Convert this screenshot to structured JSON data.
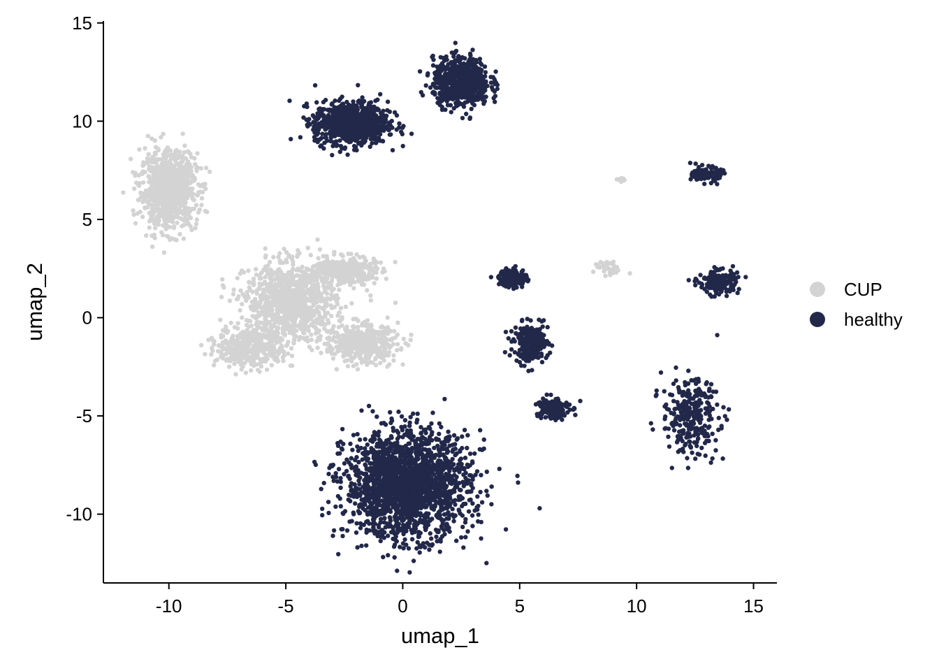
{
  "chart_data": {
    "type": "scatter",
    "xlabel": "umap_1",
    "ylabel": "umap_2",
    "xlim": [
      -12.8,
      16.0
    ],
    "ylim": [
      -13.5,
      15.1
    ],
    "xticks": [
      -10,
      -5,
      0,
      5,
      10,
      15
    ],
    "xtick_labels": [
      "-10",
      "-5",
      "0",
      "5",
      "10",
      "15"
    ],
    "yticks": [
      -10,
      -5,
      0,
      5,
      10,
      15
    ],
    "ytick_labels": [
      "-10",
      "-5",
      "0",
      "5",
      "10",
      "15"
    ],
    "grid": false,
    "legend_position": "right",
    "series": [
      {
        "name": "CUP",
        "color": "#d3d3d3",
        "clusters": [
          {
            "center": [
              -10.0,
              6.5
            ],
            "spread": [
              1.0,
              1.6
            ],
            "density": 900
          },
          {
            "center": [
              -4.8,
              0.8
            ],
            "spread": [
              1.6,
              1.6
            ],
            "density": 1000
          },
          {
            "center": [
              -2.5,
              2.4
            ],
            "spread": [
              1.1,
              0.6
            ],
            "density": 350
          },
          {
            "center": [
              -1.8,
              -1.3
            ],
            "spread": [
              1.3,
              0.8
            ],
            "density": 450
          },
          {
            "center": [
              -6.5,
              -1.5
            ],
            "spread": [
              1.2,
              0.9
            ],
            "density": 400
          },
          {
            "center": [
              8.8,
              2.5
            ],
            "spread": [
              0.5,
              0.3
            ],
            "density": 40
          },
          {
            "center": [
              9.3,
              7.0
            ],
            "spread": [
              0.2,
              0.1
            ],
            "density": 10
          }
        ]
      },
      {
        "name": "healthy",
        "color": "#222849",
        "clusters": [
          {
            "center": [
              -2.2,
              9.9
            ],
            "spread": [
              1.3,
              0.9
            ],
            "density": 900
          },
          {
            "center": [
              2.5,
              12.0
            ],
            "spread": [
              1.0,
              1.0
            ],
            "density": 700
          },
          {
            "center": [
              0.2,
              -8.5
            ],
            "spread": [
              2.2,
              2.2
            ],
            "density": 2000
          },
          {
            "center": [
              4.7,
              2.0
            ],
            "spread": [
              0.5,
              0.4
            ],
            "density": 150
          },
          {
            "center": [
              5.5,
              -1.3
            ],
            "spread": [
              0.6,
              0.8
            ],
            "density": 250
          },
          {
            "center": [
              6.4,
              -4.6
            ],
            "spread": [
              0.6,
              0.5
            ],
            "density": 160
          },
          {
            "center": [
              13.0,
              7.3
            ],
            "spread": [
              0.5,
              0.3
            ],
            "density": 120
          },
          {
            "center": [
              13.5,
              1.8
            ],
            "spread": [
              0.7,
              0.5
            ],
            "density": 180
          },
          {
            "center": [
              12.3,
              -5.0
            ],
            "spread": [
              1.0,
              1.6
            ],
            "density": 300
          }
        ]
      }
    ]
  },
  "legend": {
    "items": [
      {
        "label": "CUP",
        "color": "#d3d3d3"
      },
      {
        "label": "healthy",
        "color": "#222849"
      }
    ]
  }
}
